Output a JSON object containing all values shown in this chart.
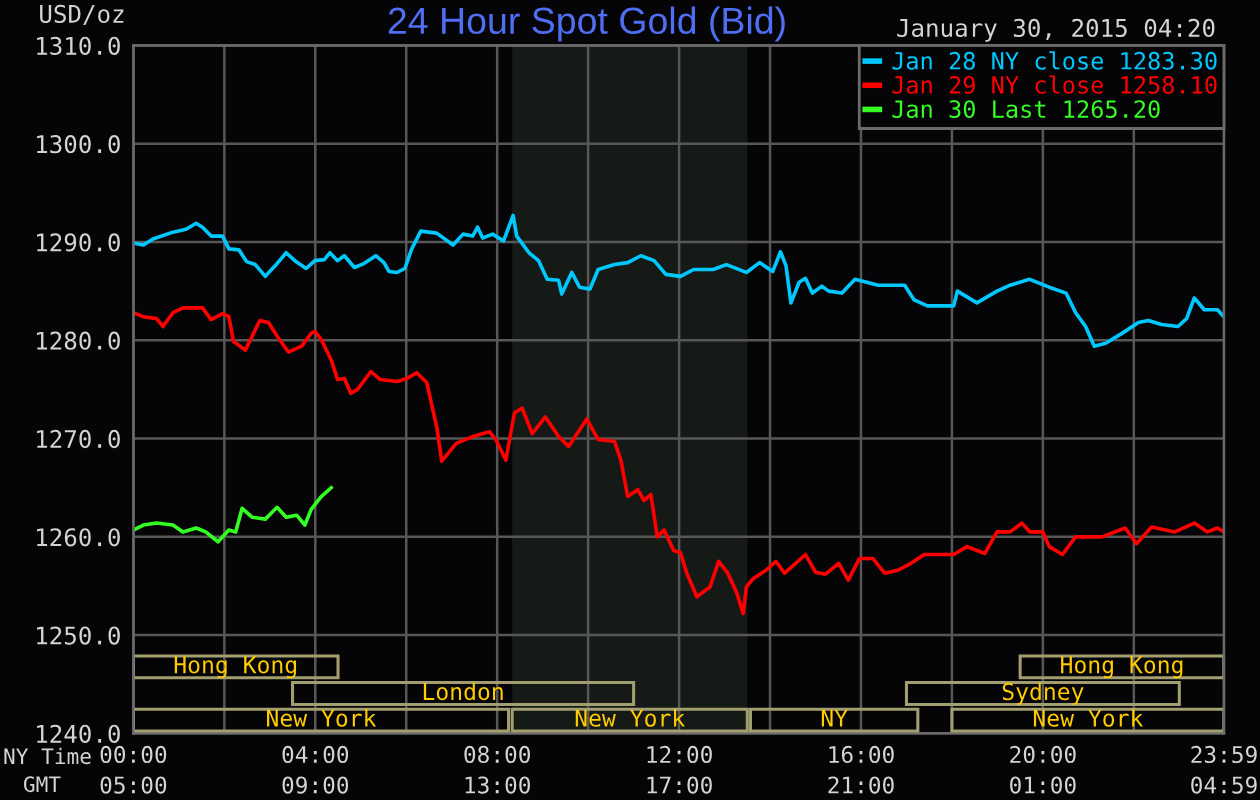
{
  "chart_data": [
    {
      "type": "line",
      "title": "24 Hour Spot Gold (Bid)",
      "subtitle": "January 30, 2015 04:20",
      "xlabel": "NY Time",
      "x2label": "GMT",
      "ylabel": "USD/oz",
      "xlim": [
        0,
        23.983
      ],
      "xticks": [
        {
          "value": 0,
          "label": "00:00"
        },
        {
          "value": 2,
          "label": null
        },
        {
          "value": 4,
          "label": "04:00"
        },
        {
          "value": 6,
          "label": null
        },
        {
          "value": 8,
          "label": "08:00"
        },
        {
          "value": 10,
          "label": null
        },
        {
          "value": 12,
          "label": "12:00"
        },
        {
          "value": 14,
          "label": null
        },
        {
          "value": 16,
          "label": "16:00"
        },
        {
          "value": 18,
          "label": null
        },
        {
          "value": 20,
          "label": "20:00"
        },
        {
          "value": 22,
          "label": null
        },
        {
          "value": 23.983,
          "label": "23:59"
        }
      ],
      "x2lim": [
        "2015-01-30T05:00",
        "2015-01-31T04:59"
      ],
      "x2ticks": [
        {
          "value": "2015-01-30T05:00",
          "label": "05:00"
        },
        {
          "value": "2015-01-30T09:00",
          "label": "09:00"
        },
        {
          "value": "2015-01-30T13:00",
          "label": "13:00"
        },
        {
          "value": "2015-01-30T17:00",
          "label": "17:00"
        },
        {
          "value": "2015-01-30T21:00",
          "label": "21:00"
        },
        {
          "value": "2015-01-31T01:00",
          "label": "01:00"
        },
        {
          "value": "2015-01-31T04:59",
          "label": "04:59"
        }
      ],
      "ylim": [
        1240,
        1310
      ],
      "yticks": [
        {
          "value": 1240,
          "label": "1240.0"
        },
        {
          "value": 1250,
          "label": "1250.0"
        },
        {
          "value": 1260,
          "label": "1260.0"
        },
        {
          "value": 1270,
          "label": "1270.0"
        },
        {
          "value": 1280,
          "label": "1280.0"
        },
        {
          "value": 1290,
          "label": "1290.0"
        },
        {
          "value": 1300,
          "label": "1300.0"
        },
        {
          "value": 1310,
          "label": "1310.0"
        }
      ],
      "grid": true,
      "legend": "top right",
      "bands": [
        {
          "axis": "x",
          "from": 8.33,
          "to": 13.5,
          "color": "#161a16"
        }
      ],
      "series": [
        {
          "name": "Jan 28 NY close 1283.30",
          "color": "#00c8ff",
          "x": [
            0,
            0.22,
            0.43,
            0.87,
            1.16,
            1.38,
            1.52,
            1.71,
            1.96,
            2.1,
            2.32,
            2.49,
            2.68,
            2.9,
            3.12,
            3.36,
            3.55,
            3.8,
            3.99,
            4.2,
            4.32,
            4.49,
            4.64,
            4.86,
            5.07,
            5.33,
            5.51,
            5.62,
            5.8,
            5.97,
            6.12,
            6.32,
            6.67,
            7.03,
            7.25,
            7.46,
            7.57,
            7.68,
            7.9,
            8.14,
            8.35,
            8.43,
            8.7,
            8.91,
            9.1,
            9.35,
            9.42,
            9.64,
            9.81,
            10.04,
            10.22,
            10.58,
            10.87,
            11.16,
            11.45,
            11.71,
            12.03,
            12.32,
            12.75,
            13.04,
            13.48,
            13.77,
            14.06,
            14.23,
            14.35,
            14.46,
            14.64,
            14.78,
            14.93,
            15.14,
            15.29,
            15.58,
            15.87,
            16.38,
            16.96,
            17.17,
            17.46,
            18.04,
            18.12,
            18.55,
            18.99,
            19.28,
            19.71,
            20.14,
            20.51,
            20.72,
            20.94,
            21.13,
            21.38,
            21.74,
            22.1,
            22.32,
            22.61,
            22.97,
            23.16,
            23.33,
            23.55,
            23.84,
            23.98
          ],
          "values": [
            1289.9,
            1289.7,
            1290.3,
            1291.0,
            1291.3,
            1291.9,
            1291.5,
            1290.6,
            1290.6,
            1289.3,
            1289.2,
            1288.0,
            1287.7,
            1286.5,
            1287.6,
            1288.9,
            1288.1,
            1287.3,
            1288.1,
            1288.2,
            1288.9,
            1288.1,
            1288.6,
            1287.4,
            1287.8,
            1288.6,
            1287.9,
            1287.0,
            1286.9,
            1287.3,
            1289.3,
            1291.1,
            1290.9,
            1289.7,
            1290.8,
            1290.6,
            1291.5,
            1290.4,
            1290.8,
            1290.1,
            1292.7,
            1290.6,
            1288.9,
            1288.1,
            1286.2,
            1286.1,
            1284.7,
            1286.9,
            1285.4,
            1285.2,
            1287.2,
            1287.7,
            1287.9,
            1288.6,
            1288.1,
            1286.7,
            1286.5,
            1287.2,
            1287.2,
            1287.7,
            1286.9,
            1287.9,
            1287.0,
            1289.0,
            1287.6,
            1283.8,
            1285.9,
            1286.3,
            1284.8,
            1285.5,
            1285.0,
            1284.8,
            1286.2,
            1285.6,
            1285.6,
            1284.1,
            1283.5,
            1283.5,
            1285.0,
            1283.8,
            1285.0,
            1285.6,
            1286.2,
            1285.4,
            1284.8,
            1282.8,
            1281.4,
            1279.4,
            1279.7,
            1280.7,
            1281.8,
            1282.0,
            1281.6,
            1281.4,
            1282.2,
            1284.3,
            1283.1,
            1283.1,
            1282.4
          ]
        },
        {
          "name": "Jan 29 NY close 1258.10",
          "color": "#ff0000",
          "x": [
            0,
            0.22,
            0.51,
            0.65,
            0.87,
            1.09,
            1.52,
            1.71,
            1.96,
            2.1,
            2.2,
            2.46,
            2.61,
            2.78,
            2.97,
            3.19,
            3.41,
            3.7,
            3.91,
            3.99,
            4.13,
            4.35,
            4.49,
            4.64,
            4.78,
            4.93,
            5.22,
            5.43,
            5.8,
            6.01,
            6.23,
            6.45,
            6.67,
            6.78,
            7.1,
            7.46,
            7.83,
            7.97,
            8.19,
            8.38,
            8.55,
            8.77,
            9.06,
            9.35,
            9.57,
            9.97,
            10.22,
            10.58,
            10.72,
            10.87,
            11.09,
            11.23,
            11.38,
            11.52,
            11.67,
            11.88,
            12.03,
            12.17,
            12.39,
            12.68,
            12.87,
            13.07,
            13.26,
            13.41,
            13.48,
            13.62,
            13.91,
            14.13,
            14.32,
            14.49,
            14.78,
            15.0,
            15.22,
            15.51,
            15.72,
            15.97,
            16.26,
            16.52,
            16.81,
            17.1,
            17.39,
            18.04,
            18.33,
            18.72,
            18.99,
            19.28,
            19.54,
            19.71,
            20.0,
            20.14,
            20.43,
            20.72,
            21.3,
            21.81,
            22.06,
            22.39,
            22.9,
            23.33,
            23.62,
            23.84,
            23.98
          ],
          "values": [
            1282.8,
            1282.4,
            1282.2,
            1281.4,
            1282.8,
            1283.3,
            1283.3,
            1282.1,
            1282.7,
            1282.4,
            1279.9,
            1279.0,
            1280.4,
            1282.0,
            1281.8,
            1280.2,
            1278.8,
            1279.4,
            1280.7,
            1280.9,
            1280.1,
            1278.0,
            1276.0,
            1276.1,
            1274.6,
            1275.0,
            1276.8,
            1276.0,
            1275.8,
            1276.1,
            1276.7,
            1275.7,
            1271.2,
            1267.7,
            1269.5,
            1270.2,
            1270.7,
            1269.9,
            1267.8,
            1272.6,
            1273.1,
            1270.5,
            1272.2,
            1270.2,
            1269.2,
            1272.0,
            1269.9,
            1269.7,
            1267.8,
            1264.1,
            1264.8,
            1263.7,
            1264.3,
            1260.0,
            1260.7,
            1258.6,
            1258.4,
            1256.3,
            1253.9,
            1254.9,
            1257.5,
            1256.3,
            1254.4,
            1252.2,
            1254.9,
            1255.7,
            1256.6,
            1257.5,
            1256.3,
            1257.0,
            1258.2,
            1256.4,
            1256.2,
            1257.3,
            1255.6,
            1257.8,
            1257.8,
            1256.3,
            1256.6,
            1257.3,
            1258.2,
            1258.2,
            1259.0,
            1258.3,
            1260.5,
            1260.5,
            1261.4,
            1260.5,
            1260.5,
            1259.0,
            1258.2,
            1260.0,
            1260.0,
            1260.9,
            1259.3,
            1261.0,
            1260.5,
            1261.4,
            1260.5,
            1260.9,
            1260.5
          ]
        },
        {
          "name": "Jan 30 Last 1265.20",
          "color": "#33ff22",
          "x": [
            0,
            0.22,
            0.51,
            0.87,
            1.09,
            1.38,
            1.59,
            1.86,
            2.1,
            2.25,
            2.39,
            2.61,
            2.9,
            3.16,
            3.36,
            3.59,
            3.77,
            3.91,
            4.13,
            4.35
          ],
          "values": [
            1260.7,
            1261.2,
            1261.4,
            1261.2,
            1260.5,
            1260.9,
            1260.5,
            1259.5,
            1260.7,
            1260.5,
            1262.9,
            1262.0,
            1261.8,
            1263.0,
            1262.0,
            1262.2,
            1261.2,
            1262.8,
            1264.1,
            1265.0
          ]
        }
      ]
    },
    {
      "type": "bar",
      "orientation": "horizontal",
      "categories": [
        null
      ],
      "xlim": [
        0,
        23.983
      ],
      "series": [
        {
          "name": "Hong Kong",
          "color": "#a39e70",
          "base": [
            0
          ],
          "values": [
            4.5
          ]
        },
        {
          "name": "Hong Kong",
          "color": "#a39e70",
          "base": [
            19.5
          ],
          "values": [
            4.48
          ]
        }
      ]
    },
    {
      "type": "bar",
      "orientation": "horizontal",
      "categories": [
        null
      ],
      "xlim": [
        0,
        23.983
      ],
      "series": [
        {
          "name": "London",
          "color": "#a39e70",
          "base": [
            3.5
          ],
          "values": [
            7.5
          ]
        },
        {
          "name": "Sydney",
          "color": "#a39e70",
          "base": [
            17
          ],
          "values": [
            6
          ]
        }
      ]
    },
    {
      "type": "bar",
      "orientation": "horizontal",
      "categories": [
        null
      ],
      "xlim": [
        0,
        23.983
      ],
      "series": [
        {
          "name": "New York",
          "color": "#a39e70",
          "base": [
            0
          ],
          "values": [
            8.25
          ]
        },
        {
          "name": "New York",
          "color": "#a39e70",
          "base": [
            8.33
          ],
          "values": [
            5.17
          ]
        },
        {
          "name": "NY",
          "color": "#a39e70",
          "base": [
            13.57
          ],
          "values": [
            3.68
          ]
        },
        {
          "name": "New York",
          "color": "#a39e70",
          "base": [
            18
          ],
          "values": [
            5.98
          ]
        }
      ]
    }
  ]
}
